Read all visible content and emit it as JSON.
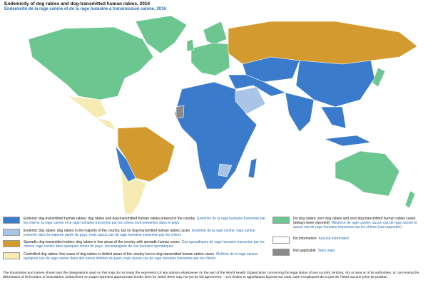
{
  "header": {
    "title": "Endemicity of dog rabies and dog-transmitted human rabies, 2016",
    "subtitle": "Endémicité de la rage canine et de la rage humaine à transmission canine, 2016"
  },
  "legend": {
    "items": [
      {
        "color": "#3b7bcc",
        "label_en": "Endemic dog-transmitted human rabies: dog rabies and dog-transmitted human rabies present in the country",
        "label_fr": "Endémie de la rage humaine transmise par les chiens: la rage canine et la rage humaine transmise par les chiens sont présentes dans le pays"
      },
      {
        "color": "#aac4e8",
        "label_en": "Endemic dog rabies: dog rabies in the majority of the country, but no dog-transmitted human rabies cases",
        "label_fr": "Endémie de la rage canine: rage canine présente dans la majeure partie du pays, mais aucun cas de rage humaine transmise par les chiens"
      },
      {
        "color": "#d39b2f",
        "label_en": "Sporadic dog-transmitted rabies: dog rabies in few areas of the country with sporadic human cases",
        "label_fr": "Cas sporadiques de rage humaine transmise par les chiens: rage canine dans quelques zones du pays, accompagnée de cas humains sporadiques"
      },
      {
        "color": "#f5ebb3",
        "label_en": "Controlled dog rabies: few cases of dog rabies in limited areas of the country but no dog-transmitted human rabies cases",
        "label_fr": "Maîtrise de la rage canine: quelques cas de rage canine dans des zones limitées du pays, mais aucun cas de rage humaine transmise par les chiens"
      },
      {
        "color": "#6cc690",
        "label_en": "No dog rabies: zero dog rabies and zero dog-transmitted human rabies cases (always been reported)",
        "label_fr": "Absence de rage canine: aucun cas de rage canine et aucun cas de rage humaine transmise par les chiens (cas rapportés)"
      },
      {
        "color": "#ffffff",
        "label_en": "No information",
        "label_fr": "Aucune information"
      },
      {
        "color": "#8a8a8a",
        "label_en": "Not applicable",
        "label_fr": "Sans objet"
      }
    ]
  },
  "footer": {
    "text": "The boundaries and names shown and the designations used on this map do not imply the expression of any opinion whatsoever on the part of the World Health Organization concerning the legal status of any country, territory, city or area or of its authorities, or concerning the delimitation of its frontiers or boundaries. Dotted lines on maps represent approximate border lines for which there may not yet be full agreement. – Les limites et appellations figurant sur cette carte n'impliquent de la part de l'OMS aucune prise de position."
  }
}
